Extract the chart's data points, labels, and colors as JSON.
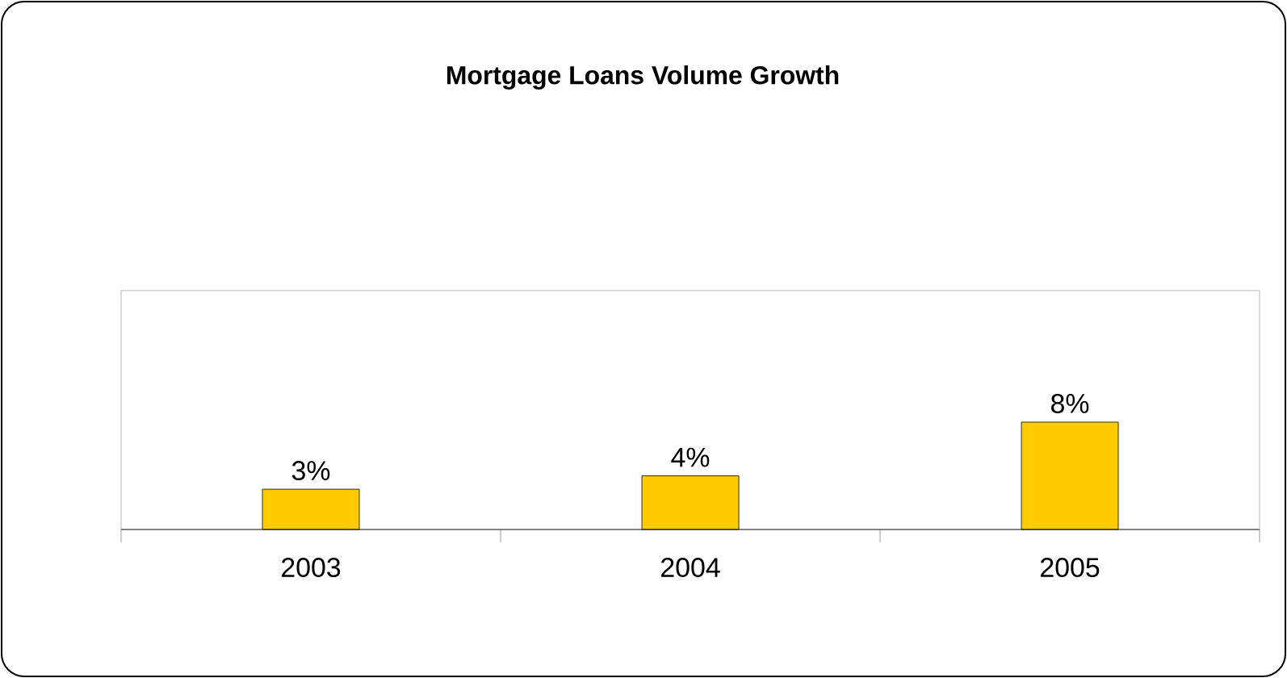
{
  "chart_data": {
    "type": "bar",
    "title": "Mortgage Loans Volume Growth",
    "categories": [
      "2003",
      "2004",
      "2005"
    ],
    "values": [
      3,
      4,
      8
    ],
    "value_labels": [
      "3%",
      "4%",
      "8%"
    ],
    "color": "#ffcc00",
    "ylim": [
      0,
      17.8
    ]
  }
}
